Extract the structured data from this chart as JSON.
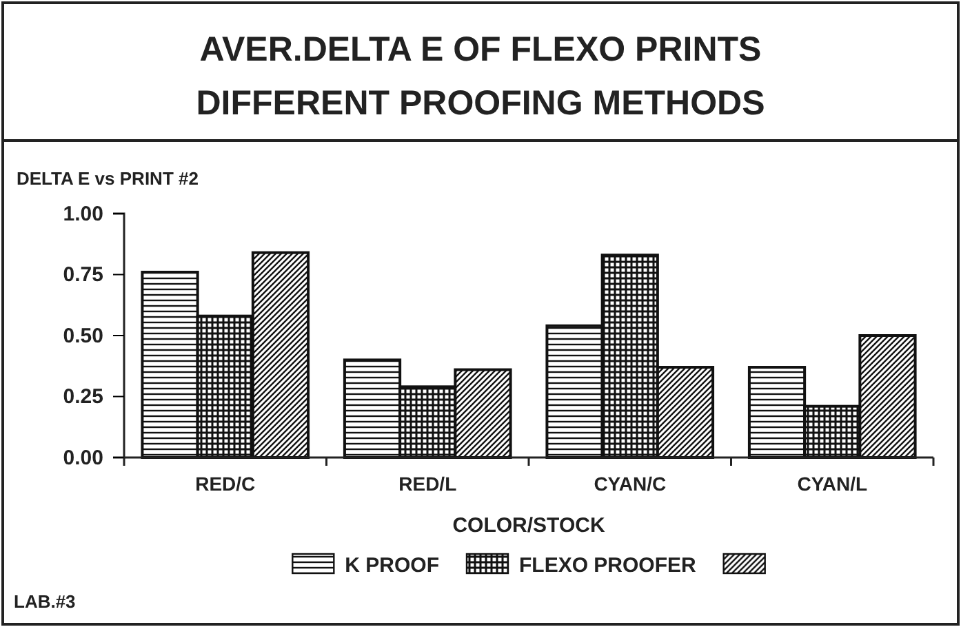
{
  "chart_data": {
    "type": "bar",
    "title": "AVER.DELTA E OF FLEXO PRINTS\nDIFFERENT PROOFING METHODS",
    "ylabel": "DELTA E vs PRINT #2",
    "xlabel": "COLOR/STOCK",
    "categories": [
      "RED/C",
      "RED/L",
      "CYAN/C",
      "CYAN/L"
    ],
    "series": [
      {
        "name": "K PROOF",
        "color": "#111111",
        "values": [
          0.76,
          0.4,
          0.54,
          0.37
        ]
      },
      {
        "name": "FLEXO PROOFER",
        "color": "#111111",
        "values": [
          0.58,
          0.29,
          0.83,
          0.21
        ]
      },
      {
        "color": "#111111",
        "values": [
          0.84,
          0.36,
          0.37,
          0.5
        ]
      }
    ],
    "ylim": [
      0,
      1
    ],
    "yticks": [
      {
        "value": 0,
        "label": "0.00"
      },
      {
        "value": 0.25,
        "label": "0.25"
      },
      {
        "value": 0.5,
        "label": "0.50"
      },
      {
        "value": 0.75,
        "label": "0.75"
      },
      {
        "value": 1,
        "label": "1.00"
      }
    ],
    "grid": false,
    "legend": "bottom",
    "annotations": [
      "LAB.#3"
    ]
  }
}
